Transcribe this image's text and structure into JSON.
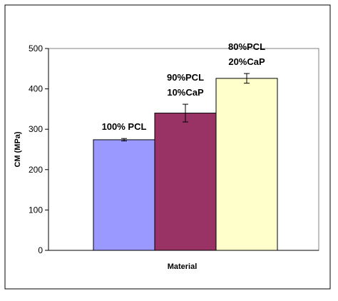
{
  "chart_data": {
    "type": "bar",
    "title": "",
    "xlabel": "Material",
    "ylabel": "CM (MPa)",
    "ylim": [
      0,
      500
    ],
    "yticks": [
      0,
      100,
      200,
      300,
      400,
      500
    ],
    "grid": false,
    "legend": "none",
    "categories": [
      "100% PCL",
      "90%PCL 10%CaP",
      "80%PCL 20%CaP"
    ],
    "series": [
      {
        "values": [
          274,
          340,
          426
        ],
        "error": [
          3,
          22,
          12
        ],
        "colors": [
          "#9999FF",
          "#993366",
          "#FFFFCC"
        ]
      }
    ],
    "bar_labels": [
      [
        "100% PCL"
      ],
      [
        "90%PCL",
        "10%CaP"
      ],
      [
        "80%PCL",
        "20%CaP"
      ]
    ]
  }
}
